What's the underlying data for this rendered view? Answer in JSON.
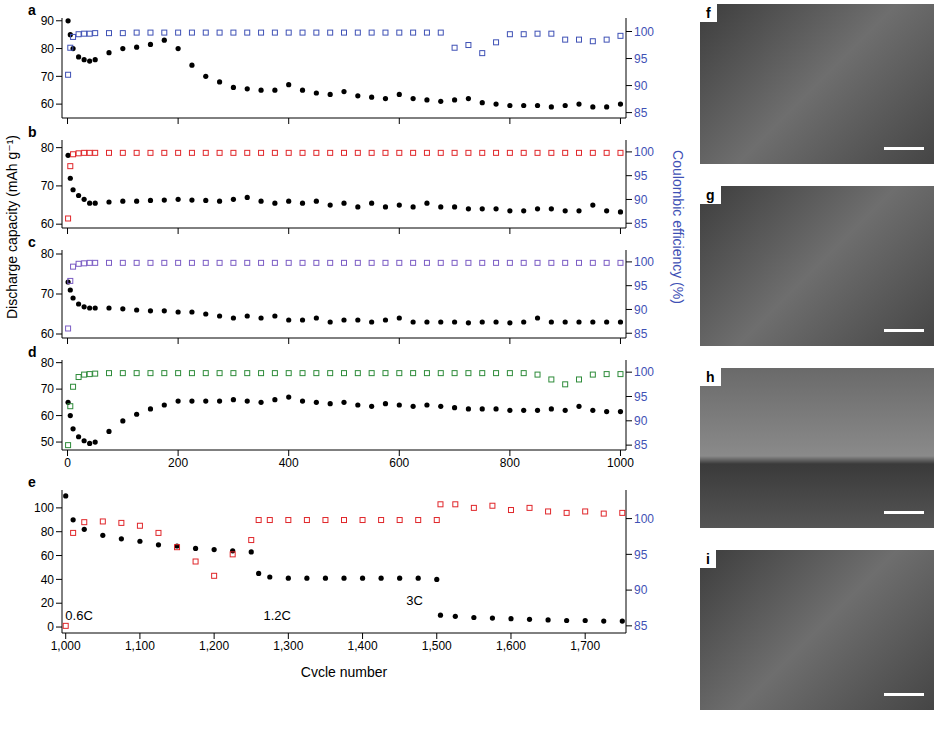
{
  "figure": {
    "ylabel": "Discharge capacity (mAh g⁻¹)",
    "y2label": "Coulombic efficiency (%)"
  },
  "chart_data": [
    {
      "label": "a",
      "type": "scatter",
      "x": [
        1,
        5,
        10,
        20,
        30,
        40,
        50,
        75,
        100,
        125,
        150,
        175,
        200,
        225,
        250,
        275,
        300,
        325,
        350,
        375,
        400,
        425,
        450,
        475,
        500,
        525,
        550,
        575,
        600,
        625,
        650,
        675,
        700,
        725,
        750,
        775,
        800,
        825,
        850,
        875,
        900,
        925,
        950,
        975,
        1000
      ],
      "xlim": [
        -10,
        1010
      ],
      "xticks": [
        0,
        200,
        400,
        600,
        800,
        1000
      ],
      "ylim": [
        55,
        91
      ],
      "yticks": [
        60,
        70,
        80,
        90
      ],
      "y2lim": [
        84,
        102.5
      ],
      "y2ticks": [
        85,
        90,
        95,
        100
      ],
      "tick_labels": "y",
      "series": [
        {
          "color": "#000000",
          "marker": "circle",
          "values": [
            90,
            85,
            80,
            77,
            76,
            75.5,
            76,
            78.5,
            80,
            80.5,
            81.5,
            83,
            80,
            74,
            70,
            68,
            66,
            65.5,
            65,
            65,
            67,
            65,
            64,
            63.5,
            64.5,
            63,
            62.5,
            62,
            63.5,
            62,
            61.5,
            61,
            61.5,
            62,
            60.5,
            60,
            59.5,
            59.5,
            59.5,
            59,
            59.5,
            60,
            59,
            59,
            60
          ]
        },
        {
          "color": "#3f51b5",
          "marker": "square",
          "axis": "y2",
          "values": [
            92,
            97,
            99,
            99.5,
            99.6,
            99.6,
            99.7,
            99.7,
            99.7,
            99.8,
            99.8,
            99.8,
            99.8,
            99.8,
            99.8,
            99.8,
            99.8,
            99.8,
            99.8,
            99.8,
            99.8,
            99.8,
            99.8,
            99.8,
            99.8,
            99.8,
            99.8,
            99.8,
            99.8,
            99.8,
            99.8,
            99.8,
            97,
            97.5,
            96,
            98,
            99.5,
            99.5,
            99.6,
            99.6,
            98.5,
            98.5,
            98.2,
            98.5,
            99.2
          ]
        }
      ]
    },
    {
      "label": "b",
      "type": "scatter",
      "x": [
        1,
        5,
        10,
        20,
        30,
        40,
        50,
        75,
        100,
        125,
        150,
        175,
        200,
        225,
        250,
        275,
        300,
        325,
        350,
        375,
        400,
        425,
        450,
        475,
        500,
        525,
        550,
        575,
        600,
        625,
        650,
        675,
        700,
        725,
        750,
        775,
        800,
        825,
        850,
        875,
        900,
        925,
        950,
        975,
        1000
      ],
      "xlim": [
        -10,
        1010
      ],
      "xticks": [
        0,
        200,
        400,
        600,
        800,
        1000
      ],
      "ylim": [
        59,
        82
      ],
      "yticks": [
        60,
        70,
        80
      ],
      "y2lim": [
        84,
        102.5
      ],
      "y2ticks": [
        85,
        90,
        95,
        100
      ],
      "tick_labels": "y",
      "series": [
        {
          "color": "#000000",
          "marker": "circle",
          "values": [
            78,
            72,
            69,
            67.5,
            66.5,
            65.5,
            65.5,
            65.8,
            66,
            66,
            66.2,
            66.3,
            66.5,
            66.3,
            66.2,
            66,
            66.5,
            67,
            66,
            65.5,
            66,
            65.5,
            66,
            65,
            65.5,
            64.5,
            65.5,
            64.5,
            65,
            64.5,
            65.5,
            64.5,
            64.5,
            64,
            64,
            64,
            63.5,
            63.5,
            64,
            64,
            63.5,
            63.5,
            65,
            63.5,
            63.2
          ]
        },
        {
          "color": "#e0262a",
          "marker": "square",
          "axis": "y2",
          "values": [
            86,
            97,
            99.5,
            99.7,
            99.8,
            99.8,
            99.8,
            99.8,
            99.8,
            99.8,
            99.8,
            99.8,
            99.8,
            99.8,
            99.8,
            99.8,
            99.8,
            99.8,
            99.8,
            99.8,
            99.8,
            99.8,
            99.8,
            99.8,
            99.8,
            99.8,
            99.8,
            99.8,
            99.8,
            99.8,
            99.8,
            99.8,
            99.8,
            99.8,
            99.8,
            99.8,
            99.8,
            99.8,
            99.8,
            99.8,
            99.8,
            99.8,
            99.8,
            99.8,
            99.8
          ]
        }
      ]
    },
    {
      "label": "c",
      "type": "scatter",
      "x": [
        1,
        5,
        10,
        20,
        30,
        40,
        50,
        75,
        100,
        125,
        150,
        175,
        200,
        225,
        250,
        275,
        300,
        325,
        350,
        375,
        400,
        425,
        450,
        475,
        500,
        525,
        550,
        575,
        600,
        625,
        650,
        675,
        700,
        725,
        750,
        775,
        800,
        825,
        850,
        875,
        900,
        925,
        950,
        975,
        1000
      ],
      "xlim": [
        -10,
        1010
      ],
      "xticks": [
        0,
        200,
        400,
        600,
        800,
        1000
      ],
      "ylim": [
        59,
        81
      ],
      "yticks": [
        60,
        70,
        80
      ],
      "y2lim": [
        84,
        102.5
      ],
      "y2ticks": [
        85,
        90,
        95,
        100
      ],
      "tick_labels": "y",
      "series": [
        {
          "color": "#000000",
          "marker": "circle",
          "values": [
            73,
            71,
            69,
            67.5,
            66.8,
            66.5,
            66.5,
            66.5,
            66.3,
            66,
            65.8,
            65.8,
            65.5,
            65.5,
            65,
            64.5,
            64,
            64.5,
            64,
            64.5,
            63.5,
            63.5,
            64,
            63,
            63.5,
            63.5,
            63,
            63.5,
            64,
            63,
            63,
            63,
            63,
            62.8,
            63,
            63,
            62.8,
            63,
            64,
            63,
            63,
            63,
            63,
            63,
            63
          ]
        },
        {
          "color": "#7b5cc4",
          "marker": "square",
          "axis": "y2",
          "values": [
            86,
            96,
            99,
            99.6,
            99.7,
            99.8,
            99.8,
            99.8,
            99.8,
            99.8,
            99.8,
            99.8,
            99.8,
            99.8,
            99.8,
            99.8,
            99.8,
            99.8,
            99.8,
            99.8,
            99.8,
            99.8,
            99.8,
            99.8,
            99.8,
            99.8,
            99.8,
            99.8,
            99.8,
            99.8,
            99.8,
            99.8,
            99.8,
            99.8,
            99.8,
            99.8,
            99.8,
            99.8,
            99.8,
            99.8,
            99.8,
            99.8,
            99.8,
            99.8,
            99.8
          ]
        }
      ]
    },
    {
      "label": "d",
      "type": "scatter",
      "x": [
        1,
        5,
        10,
        20,
        30,
        40,
        50,
        75,
        100,
        125,
        150,
        175,
        200,
        225,
        250,
        275,
        300,
        325,
        350,
        375,
        400,
        425,
        450,
        475,
        500,
        525,
        550,
        575,
        600,
        625,
        650,
        675,
        700,
        725,
        750,
        775,
        800,
        825,
        850,
        875,
        900,
        925,
        950,
        975,
        1000
      ],
      "xlim": [
        -10,
        1010
      ],
      "xticks": [
        0,
        200,
        400,
        600,
        800,
        1000
      ],
      "ylim": [
        47,
        81
      ],
      "yticks": [
        50,
        60,
        70,
        80
      ],
      "y2lim": [
        84,
        102.5
      ],
      "y2ticks": [
        85,
        90,
        95,
        100
      ],
      "series": [
        {
          "color": "#000000",
          "marker": "circle",
          "values": [
            65,
            60,
            55,
            52,
            50.5,
            49.5,
            50,
            54,
            58,
            60.5,
            62.5,
            64,
            65.5,
            65.5,
            65.5,
            65.5,
            66,
            65.5,
            65,
            66,
            67,
            65.5,
            65,
            64.5,
            65,
            64,
            63.5,
            64.5,
            64,
            63.5,
            64,
            63.5,
            63,
            62.5,
            62.5,
            62.5,
            62,
            62,
            62,
            62.5,
            62,
            63.5,
            62,
            61.5,
            61.5
          ]
        },
        {
          "color": "#2e8b3a",
          "marker": "square",
          "axis": "y2",
          "values": [
            85,
            93,
            97,
            99,
            99.5,
            99.6,
            99.7,
            99.8,
            99.8,
            99.8,
            99.8,
            99.8,
            99.8,
            99.8,
            99.8,
            99.8,
            99.8,
            99.8,
            99.8,
            99.8,
            99.8,
            99.8,
            99.8,
            99.8,
            99.8,
            99.8,
            99.8,
            99.8,
            99.8,
            99.8,
            99.8,
            99.8,
            99.8,
            99.8,
            99.8,
            99.8,
            99.8,
            99.8,
            99.5,
            98.5,
            97.5,
            98.5,
            99.5,
            99.6,
            99.6
          ]
        }
      ]
    },
    {
      "label": "e",
      "type": "scatter",
      "xlabel": "Cvcle number",
      "x": [
        1000,
        1010,
        1025,
        1050,
        1075,
        1100,
        1125,
        1150,
        1175,
        1200,
        1225,
        1250,
        1260,
        1275,
        1300,
        1325,
        1350,
        1375,
        1400,
        1425,
        1450,
        1475,
        1500,
        1505,
        1525,
        1550,
        1575,
        1600,
        1625,
        1650,
        1675,
        1700,
        1725,
        1750
      ],
      "xlim": [
        995,
        1755
      ],
      "xticks": [
        {
          "value": 1000,
          "label": "1,000"
        },
        {
          "value": 1100,
          "label": "1,100"
        },
        {
          "value": 1200,
          "label": "1,200"
        },
        {
          "value": 1300,
          "label": "1,300"
        },
        {
          "value": 1400,
          "label": "1,400"
        },
        {
          "value": 1500,
          "label": "1,500"
        },
        {
          "value": 1600,
          "label": "1,600"
        },
        {
          "value": 1700,
          "label": "1,700"
        }
      ],
      "ylim": [
        -5,
        115
      ],
      "yticks": [
        0,
        20,
        40,
        60,
        80,
        100
      ],
      "y2lim": [
        84,
        104
      ],
      "y2ticks": [
        85,
        90,
        95,
        100
      ],
      "annotations": [
        {
          "text": "0.6C",
          "x": 1018,
          "y": 10
        },
        {
          "text": "1.2C",
          "x": 1285,
          "y": 10
        },
        {
          "text": "3C",
          "x": 1470,
          "y": 22
        }
      ],
      "series": [
        {
          "color": "#000000",
          "marker": "circle",
          "values": [
            110,
            90,
            82,
            77,
            74,
            72,
            69,
            68,
            66,
            65,
            64,
            63,
            45,
            42,
            41,
            41,
            41,
            41,
            41,
            41,
            41,
            41,
            40,
            10,
            9,
            8,
            7.5,
            7,
            6.5,
            6,
            5.5,
            5.5,
            5,
            5
          ]
        },
        {
          "color": "#e0262a",
          "marker": "square",
          "axis": "y2",
          "values": [
            85,
            98,
            99.5,
            99.6,
            99.4,
            99,
            98,
            96,
            94,
            92,
            95,
            97,
            99.8,
            99.8,
            99.8,
            99.8,
            99.8,
            99.8,
            99.8,
            99.8,
            99.8,
            99.8,
            99.8,
            102,
            102,
            101.5,
            101.8,
            101.2,
            101.5,
            101,
            100.8,
            101,
            100.7,
            100.8
          ]
        }
      ]
    }
  ],
  "images": [
    {
      "label": "f"
    },
    {
      "label": "g"
    },
    {
      "label": "h"
    },
    {
      "label": "i"
    }
  ]
}
